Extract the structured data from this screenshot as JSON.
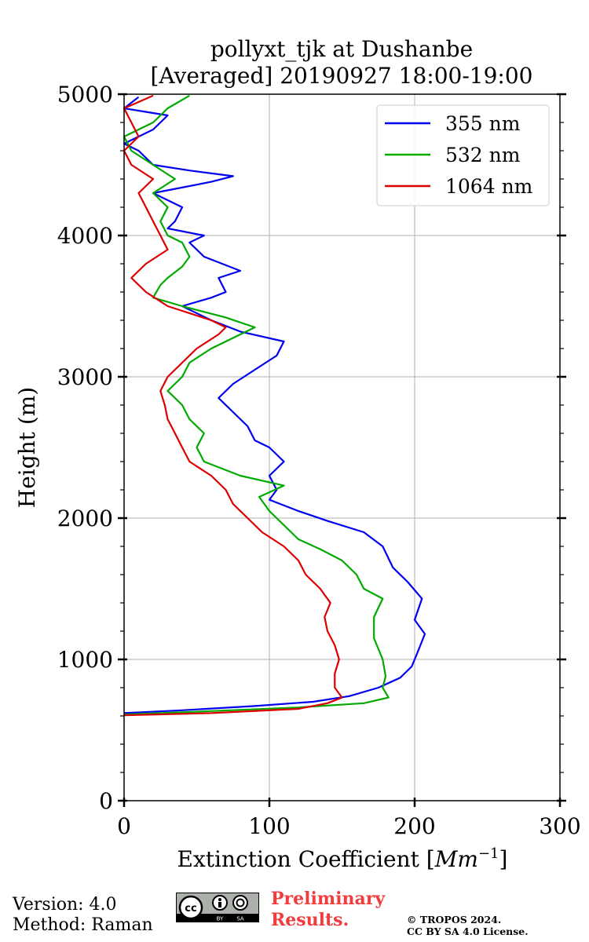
{
  "page": {
    "version_text": "Version: 4.0",
    "method_text": "Method: Raman",
    "preliminary_line1": "Preliminary",
    "preliminary_line2": "Results.",
    "copyright_line1": "© TROPOS 2024.",
    "copyright_line2": "CC BY SA 4.0 License.",
    "license_badge": "cc BY SA"
  },
  "chart_data": {
    "type": "line",
    "title": "pollyxt_tjk at Dushanbe",
    "subtitle": "[Averaged] 20190927 18:00-19:00",
    "xlabel": "Extinction Coefficient [",
    "xlabel_unit_base": "Mm",
    "xlabel_unit_exp": "−1",
    "xlabel_close": "]",
    "ylabel": "Height (m)",
    "xlim": [
      0,
      300
    ],
    "ylim": [
      0,
      5000
    ],
    "xticks": [
      0,
      100,
      200,
      300
    ],
    "yticks": [
      0,
      1000,
      2000,
      3000,
      4000,
      5000
    ],
    "xtick_labels": [
      "0",
      "100",
      "200",
      "300"
    ],
    "ytick_labels": [
      "0",
      "1000",
      "2000",
      "3000",
      "4000",
      "5000"
    ],
    "grid": true,
    "legend_position": "top-right",
    "series": [
      {
        "name": "355 nm",
        "color": "#0000ee",
        "points": [
          [
            0,
            620
          ],
          [
            40,
            640
          ],
          [
            90,
            670
          ],
          [
            130,
            700
          ],
          [
            155,
            740
          ],
          [
            175,
            800
          ],
          [
            190,
            870
          ],
          [
            198,
            950
          ],
          [
            202,
            1050
          ],
          [
            207,
            1180
          ],
          [
            200,
            1280
          ],
          [
            205,
            1430
          ],
          [
            195,
            1550
          ],
          [
            185,
            1650
          ],
          [
            178,
            1800
          ],
          [
            165,
            1900
          ],
          [
            140,
            1980
          ],
          [
            120,
            2050
          ],
          [
            100,
            2130
          ],
          [
            105,
            2200
          ],
          [
            100,
            2300
          ],
          [
            110,
            2400
          ],
          [
            100,
            2500
          ],
          [
            90,
            2550
          ],
          [
            85,
            2650
          ],
          [
            75,
            2750
          ],
          [
            65,
            2850
          ],
          [
            75,
            2950
          ],
          [
            90,
            3050
          ],
          [
            105,
            3150
          ],
          [
            110,
            3250
          ],
          [
            80,
            3320
          ],
          [
            60,
            3400
          ],
          [
            40,
            3500
          ],
          [
            60,
            3560
          ],
          [
            70,
            3600
          ],
          [
            65,
            3700
          ],
          [
            80,
            3750
          ],
          [
            55,
            3850
          ],
          [
            45,
            3950
          ],
          [
            55,
            4000
          ],
          [
            30,
            4050
          ],
          [
            35,
            4100
          ],
          [
            40,
            4200
          ],
          [
            20,
            4300
          ],
          [
            60,
            4380
          ],
          [
            75,
            4420
          ],
          [
            45,
            4460
          ],
          [
            20,
            4500
          ],
          [
            10,
            4600
          ],
          [
            0,
            4650
          ],
          [
            20,
            4750
          ],
          [
            30,
            4850
          ],
          [
            0,
            4900
          ],
          [
            10,
            4980
          ]
        ]
      },
      {
        "name": "532 nm",
        "color": "#00aa00",
        "points": [
          [
            0,
            610
          ],
          [
            50,
            630
          ],
          [
            120,
            660
          ],
          [
            165,
            690
          ],
          [
            182,
            730
          ],
          [
            178,
            800
          ],
          [
            180,
            880
          ],
          [
            178,
            1000
          ],
          [
            172,
            1150
          ],
          [
            172,
            1300
          ],
          [
            178,
            1430
          ],
          [
            165,
            1500
          ],
          [
            160,
            1600
          ],
          [
            150,
            1700
          ],
          [
            135,
            1780
          ],
          [
            120,
            1850
          ],
          [
            110,
            1950
          ],
          [
            100,
            2050
          ],
          [
            93,
            2150
          ],
          [
            110,
            2230
          ],
          [
            80,
            2300
          ],
          [
            55,
            2400
          ],
          [
            50,
            2500
          ],
          [
            55,
            2600
          ],
          [
            45,
            2700
          ],
          [
            40,
            2800
          ],
          [
            30,
            2900
          ],
          [
            40,
            3000
          ],
          [
            45,
            3100
          ],
          [
            60,
            3200
          ],
          [
            80,
            3300
          ],
          [
            90,
            3350
          ],
          [
            70,
            3420
          ],
          [
            40,
            3500
          ],
          [
            20,
            3560
          ],
          [
            25,
            3650
          ],
          [
            30,
            3700
          ],
          [
            40,
            3780
          ],
          [
            45,
            3850
          ],
          [
            40,
            3950
          ],
          [
            30,
            4000
          ],
          [
            25,
            4100
          ],
          [
            30,
            4200
          ],
          [
            20,
            4300
          ],
          [
            35,
            4400
          ],
          [
            20,
            4500
          ],
          [
            5,
            4600
          ],
          [
            0,
            4700
          ],
          [
            20,
            4800
          ],
          [
            30,
            4900
          ],
          [
            45,
            4990
          ]
        ]
      },
      {
        "name": "1064 nm",
        "color": "#dd0000",
        "points": [
          [
            0,
            605
          ],
          [
            60,
            620
          ],
          [
            120,
            650
          ],
          [
            140,
            690
          ],
          [
            150,
            730
          ],
          [
            145,
            800
          ],
          [
            145,
            900
          ],
          [
            148,
            1000
          ],
          [
            145,
            1100
          ],
          [
            140,
            1200
          ],
          [
            138,
            1300
          ],
          [
            142,
            1400
          ],
          [
            135,
            1500
          ],
          [
            125,
            1600
          ],
          [
            120,
            1700
          ],
          [
            110,
            1800
          ],
          [
            95,
            1900
          ],
          [
            85,
            2000
          ],
          [
            75,
            2100
          ],
          [
            70,
            2200
          ],
          [
            60,
            2300
          ],
          [
            45,
            2400
          ],
          [
            40,
            2500
          ],
          [
            35,
            2600
          ],
          [
            30,
            2700
          ],
          [
            28,
            2800
          ],
          [
            25,
            2900
          ],
          [
            30,
            3000
          ],
          [
            40,
            3100
          ],
          [
            50,
            3200
          ],
          [
            65,
            3300
          ],
          [
            70,
            3350
          ],
          [
            60,
            3400
          ],
          [
            30,
            3500
          ],
          [
            15,
            3600
          ],
          [
            5,
            3700
          ],
          [
            15,
            3800
          ],
          [
            30,
            3900
          ],
          [
            25,
            4000
          ],
          [
            20,
            4100
          ],
          [
            15,
            4200
          ],
          [
            10,
            4300
          ],
          [
            20,
            4400
          ],
          [
            5,
            4500
          ],
          [
            0,
            4600
          ],
          [
            10,
            4700
          ],
          [
            5,
            4800
          ],
          [
            0,
            4900
          ],
          [
            20,
            4990
          ]
        ]
      }
    ]
  }
}
